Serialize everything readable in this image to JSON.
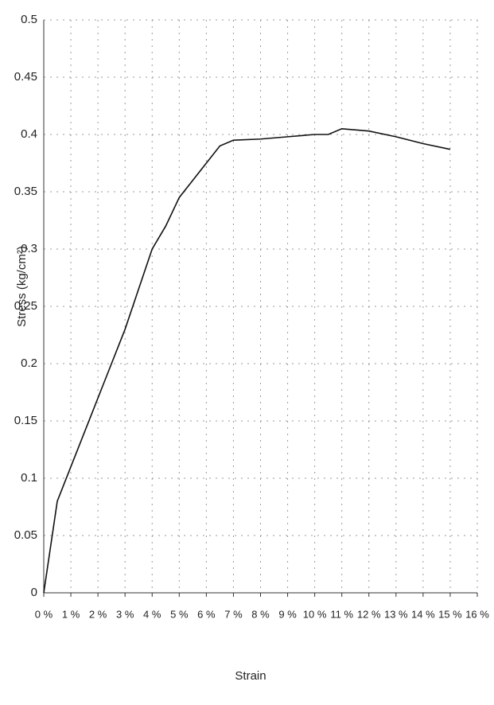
{
  "chart_data": {
    "type": "line",
    "x_label": "Strain",
    "y_label": "Stress (kg/cm²)",
    "x": [
      0,
      0.5,
      1,
      2,
      3,
      4,
      4.5,
      5,
      5.5,
      6,
      6.5,
      7,
      8,
      9,
      10,
      10.5,
      11,
      12,
      13,
      14,
      15
    ],
    "series": [
      {
        "color": "#111111",
        "values": [
          0,
          0.08,
          0.11,
          0.17,
          0.23,
          0.3,
          0.32,
          0.345,
          0.36,
          0.375,
          0.39,
          0.395,
          0.396,
          0.398,
          0.4,
          0.4,
          0.405,
          0.403,
          0.398,
          0.392,
          0.387
        ]
      }
    ],
    "xlim": [
      0,
      16
    ],
    "xticks": [
      {
        "value": 0,
        "label": "0 %"
      },
      {
        "value": 1,
        "label": "1 %"
      },
      {
        "value": 2,
        "label": "2 %"
      },
      {
        "value": 3,
        "label": "3 %"
      },
      {
        "value": 4,
        "label": "4 %"
      },
      {
        "value": 5,
        "label": "5 %"
      },
      {
        "value": 6,
        "label": "6 %"
      },
      {
        "value": 7,
        "label": "7 %"
      },
      {
        "value": 8,
        "label": "8 %"
      },
      {
        "value": 9,
        "label": "9 %"
      },
      {
        "value": 10,
        "label": "10 %"
      },
      {
        "value": 11,
        "label": "11 %"
      },
      {
        "value": 12,
        "label": "12 %"
      },
      {
        "value": 13,
        "label": "13 %"
      },
      {
        "value": 14,
        "label": "14 %"
      },
      {
        "value": 15,
        "label": "15 %"
      },
      {
        "value": 16,
        "label": "16 %"
      }
    ],
    "ylim": [
      0,
      0.5
    ],
    "yticks": [
      0,
      0.05,
      0.1,
      0.15,
      0.2,
      0.25,
      0.3,
      0.35,
      0.4,
      0.45,
      0.5
    ],
    "grid": true
  }
}
